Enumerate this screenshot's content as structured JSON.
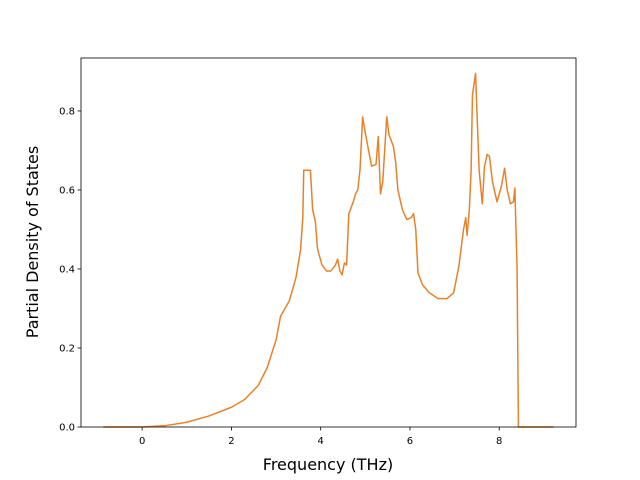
{
  "chart_data": {
    "type": "line",
    "xlabel": "Frequency (THz)",
    "ylabel": "Partial Density of States",
    "x": [
      -0.87,
      0,
      0.5,
      1,
      1.5,
      2,
      2.3,
      2.6,
      2.8,
      3.0,
      3.1,
      3.3,
      3.45,
      3.55,
      3.6,
      3.62,
      3.77,
      3.82,
      3.88,
      3.93,
      4.03,
      4.13,
      4.23,
      4.33,
      4.38,
      4.43,
      4.48,
      4.53,
      4.58,
      4.63,
      4.73,
      4.78,
      4.83,
      4.88,
      4.94,
      4.99,
      5.04,
      5.14,
      5.24,
      5.29,
      5.34,
      5.39,
      5.48,
      5.53,
      5.63,
      5.68,
      5.73,
      5.83,
      5.93,
      6.03,
      6.08,
      6.13,
      6.18,
      6.28,
      6.43,
      6.63,
      6.83,
      6.98,
      7.1,
      7.2,
      7.25,
      7.28,
      7.33,
      7.37,
      7.4,
      7.47,
      7.5,
      7.55,
      7.62,
      7.67,
      7.73,
      7.78,
      7.85,
      7.95,
      8.05,
      8.12,
      8.18,
      8.25,
      8.32,
      8.35,
      8.4,
      8.43,
      9.22
    ],
    "series": [
      {
        "color": "#e8822a",
        "values": [
          0,
          0,
          0.003,
          0.012,
          0.028,
          0.05,
          0.07,
          0.105,
          0.15,
          0.22,
          0.28,
          0.32,
          0.38,
          0.45,
          0.53,
          0.65,
          0.65,
          0.55,
          0.52,
          0.45,
          0.41,
          0.395,
          0.395,
          0.41,
          0.425,
          0.395,
          0.385,
          0.415,
          0.41,
          0.54,
          0.57,
          0.59,
          0.6,
          0.65,
          0.785,
          0.75,
          0.72,
          0.66,
          0.665,
          0.735,
          0.59,
          0.62,
          0.785,
          0.74,
          0.71,
          0.67,
          0.6,
          0.55,
          0.525,
          0.53,
          0.54,
          0.5,
          0.39,
          0.36,
          0.34,
          0.325,
          0.325,
          0.34,
          0.41,
          0.5,
          0.53,
          0.485,
          0.55,
          0.65,
          0.84,
          0.895,
          0.8,
          0.65,
          0.565,
          0.66,
          0.69,
          0.685,
          0.62,
          0.57,
          0.61,
          0.655,
          0.6,
          0.565,
          0.57,
          0.605,
          0.4,
          0,
          0
        ]
      }
    ],
    "xlim": [
      -1.37,
      9.72
    ],
    "ylim": [
      0,
      0.934
    ],
    "xticks": [
      0,
      2,
      4,
      6,
      8
    ],
    "yticks": [
      {
        "value": 0,
        "label": "0.0"
      },
      0.2,
      0.4,
      0.6,
      0.8
    ],
    "grid": false
  }
}
